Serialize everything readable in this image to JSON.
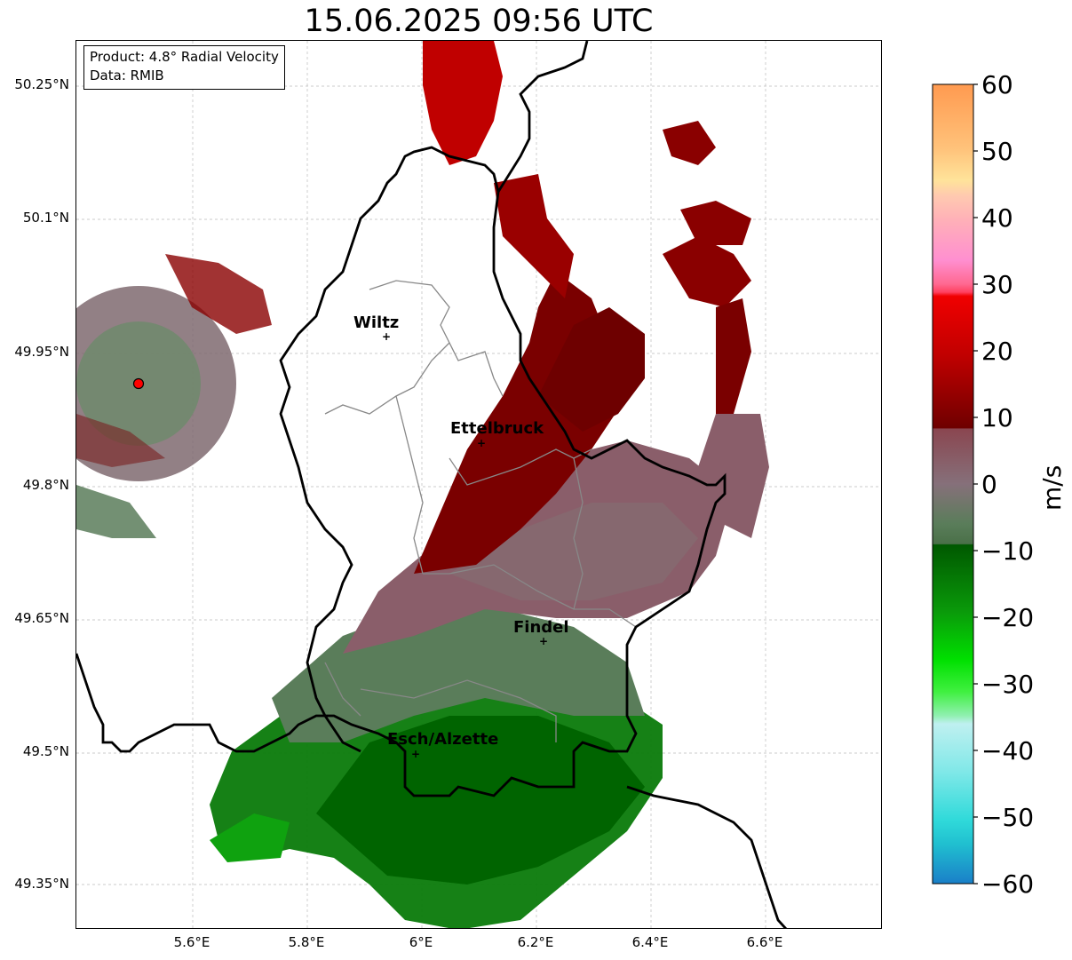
{
  "title": "15.06.2025 09:56 UTC",
  "info": {
    "product": "Product: 4.8° Radial Velocity",
    "data": "Data: RMIB"
  },
  "map": {
    "lat_ticks": [
      "50.25°N",
      "50.1°N",
      "49.95°N",
      "49.8°N",
      "49.65°N",
      "49.5°N",
      "49.35°N"
    ],
    "lon_ticks": [
      "5.6°E",
      "5.8°E",
      "6°E",
      "6.2°E",
      "6.4°E",
      "6.6°E"
    ],
    "cities": [
      {
        "name": "Wiltz"
      },
      {
        "name": "Ettelbruck"
      },
      {
        "name": "Findel"
      },
      {
        "name": "Esch/Alzette"
      }
    ],
    "radar_marker_color": "#ff0000",
    "border_color": "#000000",
    "canton_color": "#888888"
  },
  "colorbar": {
    "label": "m/s",
    "ticks": [
      "60",
      "50",
      "40",
      "30",
      "20",
      "10",
      "0",
      "−10",
      "−20",
      "−30",
      "−40",
      "−50",
      "−60"
    ],
    "range": [
      -60,
      60
    ]
  }
}
